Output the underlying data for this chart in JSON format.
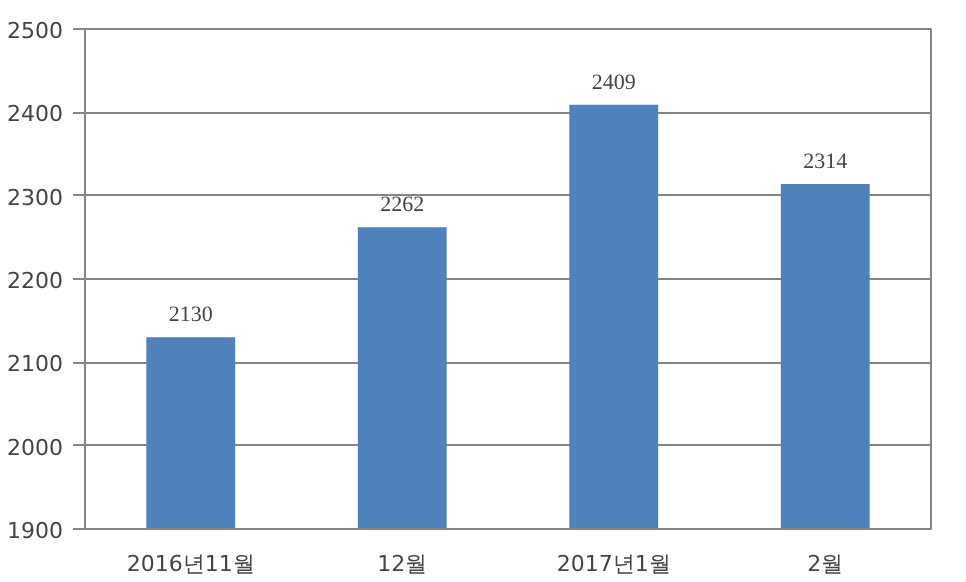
{
  "chart_data": {
    "type": "bar",
    "categories": [
      "2016년11월",
      "12월",
      "2017년1월",
      "2월"
    ],
    "values": [
      2130,
      2262,
      2409,
      2314
    ],
    "color": "#4f81bd",
    "ylim": [
      1900,
      2500
    ],
    "yticks": [
      1900,
      2000,
      2100,
      2200,
      2300,
      2400,
      2500
    ],
    "grid": "y",
    "data_labels": true
  }
}
